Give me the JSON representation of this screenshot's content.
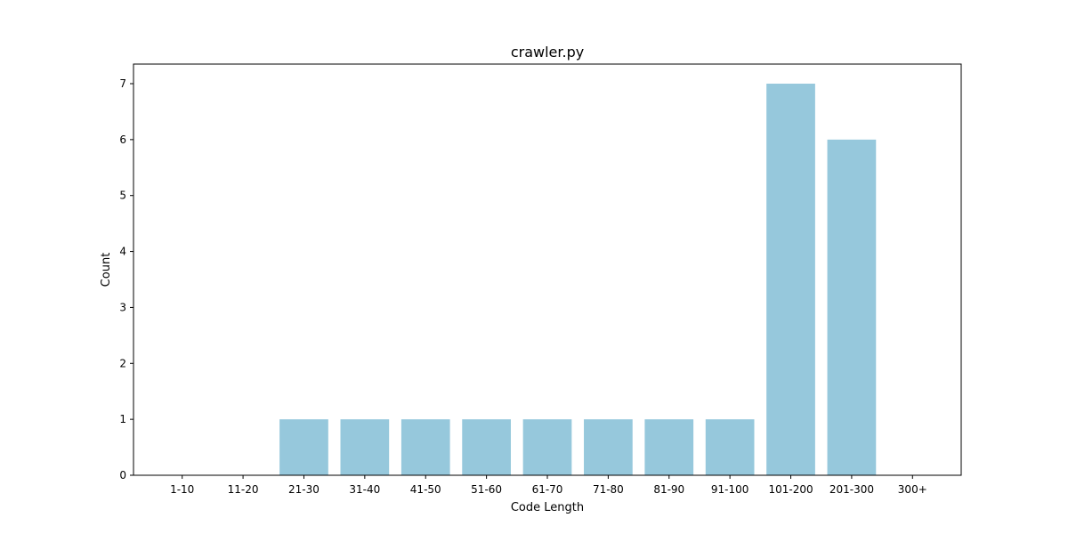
{
  "chart_data": {
    "type": "bar",
    "title": "crawler.py",
    "xlabel": "Code Length",
    "ylabel": "Count",
    "categories": [
      "1-10",
      "11-20",
      "21-30",
      "31-40",
      "41-50",
      "51-60",
      "61-70",
      "71-80",
      "81-90",
      "91-100",
      "101-200",
      "201-300",
      "300+"
    ],
    "values": [
      0,
      0,
      1,
      1,
      1,
      1,
      1,
      1,
      1,
      1,
      7,
      6,
      0
    ],
    "ylim": [
      0,
      7.35
    ],
    "yticks": [
      0,
      1,
      2,
      3,
      4,
      5,
      6,
      7
    ],
    "bar_color": "#96c8dc",
    "grid": false,
    "legend": "none"
  }
}
